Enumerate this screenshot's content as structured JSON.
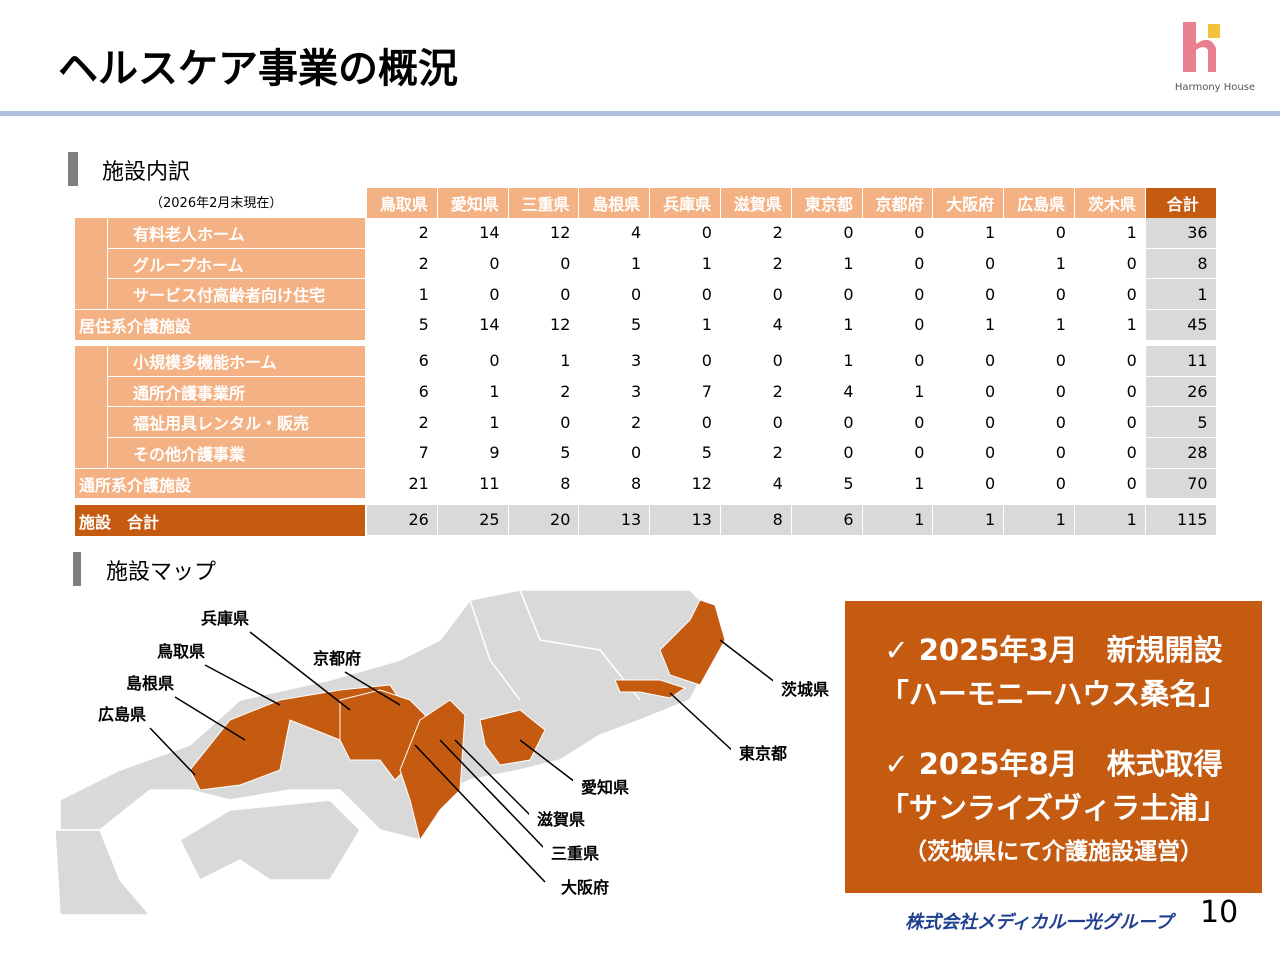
{
  "header": {
    "title": "ヘルスケア事業の概況",
    "logo_text": "Harmony House"
  },
  "section1": {
    "heading": "施設内訳"
  },
  "table": {
    "note": "（2026年2月末現在）",
    "columns": [
      "鳥取県",
      "愛知県",
      "三重県",
      "島根県",
      "兵庫県",
      "滋賀県",
      "東京都",
      "京都府",
      "大阪府",
      "広島県",
      "茨木県",
      "合計"
    ],
    "groups": [
      {
        "items": [
          {
            "label": "有料老人ホーム",
            "values": [
              2,
              14,
              12,
              4,
              0,
              2,
              0,
              0,
              1,
              0,
              1,
              36
            ]
          },
          {
            "label": "グループホーム",
            "values": [
              2,
              0,
              0,
              1,
              1,
              2,
              1,
              0,
              0,
              1,
              0,
              8
            ]
          },
          {
            "label": "サービス付高齢者向け住宅",
            "values": [
              1,
              0,
              0,
              0,
              0,
              0,
              0,
              0,
              0,
              0,
              0,
              1
            ]
          }
        ],
        "subtotal": {
          "label": "居住系介護施設",
          "values": [
            5,
            14,
            12,
            5,
            1,
            4,
            1,
            0,
            1,
            1,
            1,
            45
          ]
        }
      },
      {
        "items": [
          {
            "label": "小規模多機能ホーム",
            "values": [
              6,
              0,
              1,
              3,
              0,
              0,
              1,
              0,
              0,
              0,
              0,
              11
            ]
          },
          {
            "label": "通所介護事業所",
            "values": [
              6,
              1,
              2,
              3,
              7,
              2,
              4,
              1,
              0,
              0,
              0,
              26
            ]
          },
          {
            "label": "福祉用具レンタル・販売",
            "values": [
              2,
              1,
              0,
              2,
              0,
              0,
              0,
              0,
              0,
              0,
              0,
              5
            ]
          },
          {
            "label": "その他介護事業",
            "values": [
              7,
              9,
              5,
              0,
              5,
              2,
              0,
              0,
              0,
              0,
              0,
              28
            ]
          }
        ],
        "subtotal": {
          "label": "通所系介護施設",
          "values": [
            21,
            11,
            8,
            8,
            12,
            4,
            5,
            1,
            0,
            0,
            0,
            70
          ]
        }
      }
    ],
    "total": {
      "label": "施設　合計",
      "values": [
        26,
        25,
        20,
        13,
        13,
        8,
        6,
        1,
        1,
        1,
        1,
        115
      ]
    }
  },
  "section2": {
    "heading": "施設マップ"
  },
  "map": {
    "labels": [
      "兵庫県",
      "鳥取県",
      "京都府",
      "島根県",
      "広島県",
      "愛知県",
      "滋賀県",
      "三重県",
      "大阪府",
      "茨城県",
      "東京都"
    ]
  },
  "callout": {
    "lines": [
      "✓ 2025年3月　新規開設",
      "「ハーモニーハウス桑名」",
      "✓ 2025年8月　株式取得",
      "「サンライズヴィラ土浦」",
      "（茨城県にて介護施設運営）"
    ]
  },
  "footer": {
    "company": "株式会社メディカル一光グループ",
    "page": "10"
  }
}
